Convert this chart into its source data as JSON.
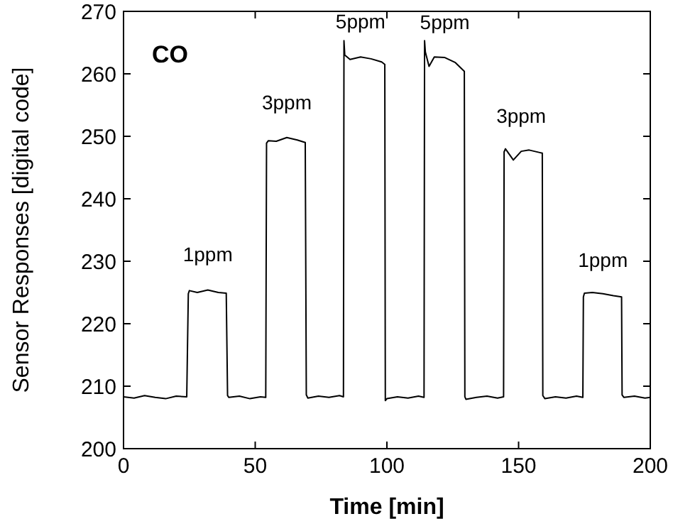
{
  "chart_data": {
    "type": "line",
    "xlabel": "Time [min]",
    "ylabel": "Sensor Responses [digital code]",
    "xlim": [
      0,
      200
    ],
    "xticks": [
      0,
      50,
      100,
      150,
      200
    ],
    "ylim": [
      200,
      270
    ],
    "yticks": [
      200,
      210,
      220,
      230,
      240,
      250,
      260,
      270
    ],
    "grid": false,
    "marker": "none",
    "line_style": "solid",
    "annotations": [
      "CO",
      {
        "text": "1ppm",
        "x": 32,
        "y": 225.4
      },
      {
        "text": "3ppm",
        "x": 62,
        "y": 249.8
      },
      {
        "text": "5ppm",
        "x": 90,
        "y": 262.7
      },
      {
        "text": "5ppm",
        "x": 122,
        "y": 262.6
      },
      {
        "text": "3ppm",
        "x": 151,
        "y": 247.6
      },
      {
        "text": "1ppm",
        "x": 182,
        "y": 224.5
      }
    ],
    "series": [
      {
        "color": "#000000",
        "x": [
          0,
          4,
          8,
          12,
          16,
          20,
          24,
          24.6,
          25,
          28,
          32,
          36,
          39,
          39.5,
          40,
          44,
          48,
          52,
          54,
          54.3,
          55,
          58,
          62,
          66,
          69,
          69.4,
          70,
          74,
          78,
          82,
          83.5,
          83.7,
          84,
          86,
          90,
          94,
          98,
          99.2,
          99.4,
          100,
          104,
          108,
          112,
          114.1,
          114.3,
          114.6,
          116,
          118,
          122,
          126,
          129.4,
          129.6,
          130,
          134,
          138,
          142,
          144.3,
          144.5,
          145,
          148,
          151,
          154,
          158,
          159,
          159.2,
          160,
          164,
          168,
          172,
          174.4,
          174.6,
          175,
          178,
          182,
          186,
          189.1,
          189.3,
          190,
          194,
          198,
          200
        ],
        "values": [
          208.3,
          208.1,
          208.5,
          208.2,
          208,
          208.4,
          208.3,
          224.8,
          225.3,
          225,
          225.4,
          225,
          224.9,
          208.5,
          208.2,
          208.4,
          208,
          208.3,
          208.2,
          248.9,
          249.3,
          249.2,
          249.8,
          249.4,
          249,
          208.6,
          208.1,
          208.4,
          208.2,
          208.5,
          208.3,
          265.3,
          263,
          262.3,
          262.7,
          262.4,
          261.9,
          261.5,
          207.7,
          208,
          208.3,
          208.1,
          208.4,
          208.2,
          265.3,
          263.5,
          261.2,
          262.7,
          262.6,
          261.8,
          260.4,
          208.3,
          207.9,
          208.2,
          208.4,
          208.1,
          208.3,
          247.5,
          248,
          246.2,
          247.6,
          247.8,
          247.4,
          247.3,
          208.5,
          208,
          208.3,
          208.1,
          208.4,
          208.2,
          224.3,
          224.9,
          225,
          224.8,
          224.5,
          224.3,
          208.6,
          208.2,
          208.4,
          208.1,
          208.2
        ]
      }
    ]
  }
}
